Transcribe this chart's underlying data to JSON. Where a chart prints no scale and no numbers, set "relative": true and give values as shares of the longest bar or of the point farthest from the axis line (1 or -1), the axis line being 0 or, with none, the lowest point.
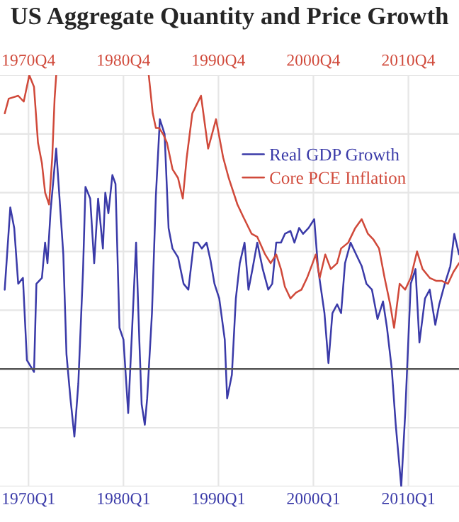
{
  "chart_data": {
    "type": "line",
    "title": "US Aggregate Quantity and Price Growth",
    "relative": true,
    "xlim": [
      "1967-01",
      "2015-05"
    ],
    "xticks": [
      {
        "value": "1970-01",
        "label": "1970Q1"
      },
      {
        "value": "1980-01",
        "label": "1980Q1"
      },
      {
        "value": "1990-01",
        "label": "1990Q1"
      },
      {
        "value": "2000-01",
        "label": "2000Q1"
      },
      {
        "value": "2010-01",
        "label": "2010Q1"
      }
    ],
    "x2lim": [
      "1967-10",
      "2016-02"
    ],
    "x2ticks": [
      {
        "value": "1970-10",
        "label": "1970Q4"
      },
      {
        "value": "1980-10",
        "label": "1980Q4"
      },
      {
        "value": "1990-10",
        "label": "1990Q4"
      },
      {
        "value": "2000-10",
        "label": "2000Q4"
      },
      {
        "value": "2010-10",
        "label": "2010Q4"
      }
    ],
    "grid": true,
    "legend": "top right",
    "ref_lines": [
      {
        "axis": "y",
        "value": 0,
        "color": "#555555"
      }
    ],
    "series": [
      {
        "name": "Real GDP Growth",
        "color": "#3a3aa8",
        "x": [
          "1967-07",
          "1968-02",
          "1968-07",
          "1968-12",
          "1969-06",
          "1969-11",
          "1970-08",
          "1970-11",
          "1971-06",
          "1971-10",
          "1972-01",
          "1972-05",
          "1972-12",
          "1973-09",
          "1974-01",
          "1974-06",
          "1974-11",
          "1975-04",
          "1975-10",
          "1976-01",
          "1976-07",
          "1976-12",
          "1977-05",
          "1977-11",
          "1978-02",
          "1978-06",
          "1978-11",
          "1979-03",
          "1979-08",
          "1980-01",
          "1980-07",
          "1980-12",
          "1981-05",
          "1981-09",
          "1981-12",
          "1982-04",
          "1982-07",
          "1983-01",
          "1983-06",
          "1983-11",
          "1984-05",
          "1984-10",
          "1985-03",
          "1985-10",
          "1986-05",
          "1986-11",
          "1987-06",
          "1987-11",
          "1988-04",
          "1988-10",
          "1989-03",
          "1989-08",
          "1990-02",
          "1990-09",
          "1990-12",
          "1991-06",
          "1991-11",
          "1992-04",
          "1992-10",
          "1993-03",
          "1993-08",
          "1994-02",
          "1994-09",
          "1995-04",
          "1995-09",
          "1996-02",
          "1996-08",
          "1997-01",
          "1997-08",
          "1998-01",
          "1998-07",
          "1998-12",
          "1999-07",
          "2000-02",
          "2000-07",
          "2001-03",
          "2001-08",
          "2002-01",
          "2002-07",
          "2002-12",
          "2003-05",
          "2003-12",
          "2004-07",
          "2005-02",
          "2005-08",
          "2006-03",
          "2006-10",
          "2007-05",
          "2007-10",
          "2008-04",
          "2008-09",
          "2009-04",
          "2009-09",
          "2010-04",
          "2010-10",
          "2011-03",
          "2011-10",
          "2012-04",
          "2012-11",
          "2013-04",
          "2013-11",
          "2014-06",
          "2014-11",
          "2015-05"
        ],
        "values": [
          0.27,
          0.55,
          0.48,
          0.29,
          0.31,
          0.03,
          -0.01,
          0.29,
          0.31,
          0.43,
          0.36,
          0.54,
          0.75,
          0.39,
          0.05,
          -0.1,
          -0.23,
          -0.05,
          0.34,
          0.62,
          0.58,
          0.36,
          0.58,
          0.41,
          0.6,
          0.53,
          0.66,
          0.63,
          0.14,
          0.1,
          -0.15,
          0.14,
          0.43,
          0.1,
          -0.12,
          -0.19,
          -0.1,
          0.19,
          0.59,
          0.85,
          0.8,
          0.48,
          0.41,
          0.38,
          0.29,
          0.27,
          0.43,
          0.43,
          0.41,
          0.43,
          0.37,
          0.29,
          0.24,
          0.1,
          -0.1,
          -0.02,
          0.24,
          0.36,
          0.43,
          0.27,
          0.34,
          0.43,
          0.34,
          0.27,
          0.29,
          0.43,
          0.43,
          0.46,
          0.47,
          0.43,
          0.48,
          0.46,
          0.48,
          0.51,
          0.34,
          0.19,
          0.02,
          0.19,
          0.22,
          0.19,
          0.36,
          0.43,
          0.39,
          0.35,
          0.29,
          0.27,
          0.17,
          0.23,
          0.14,
          0.0,
          -0.19,
          -0.4,
          -0.15,
          0.29,
          0.34,
          0.09,
          0.24,
          0.27,
          0.15,
          0.22,
          0.29,
          0.35,
          0.46,
          0.39
        ]
      },
      {
        "name": "Core PCE Inflation",
        "color": "#d0493a",
        "axis": "x2",
        "x": [
          "1968-04",
          "1968-09",
          "1969-09",
          "1970-04",
          "1970-11",
          "1971-05",
          "1971-10",
          "1972-03",
          "1972-07",
          "1972-12",
          "1973-04",
          "1973-07",
          "1973-09",
          "1977-10",
          "1983-06",
          "1983-11",
          "1984-03",
          "1984-07",
          "1984-12",
          "1985-05",
          "1985-12",
          "1986-07",
          "1987-01",
          "1987-06",
          "1988-01",
          "1988-12",
          "1989-09",
          "1990-07",
          "1991-04",
          "1991-11",
          "1992-10",
          "1993-05",
          "1994-04",
          "1994-11",
          "1995-09",
          "1996-04",
          "1996-11",
          "1997-05",
          "1997-10",
          "1998-05",
          "1998-12",
          "1999-07",
          "2000-02",
          "2000-09",
          "2001-01",
          "2001-06",
          "2002-01",
          "2002-08",
          "2003-04",
          "2003-09",
          "2004-06",
          "2005-03",
          "2005-11",
          "2006-07",
          "2007-02",
          "2007-09",
          "2008-04",
          "2008-11",
          "2009-04",
          "2009-11",
          "2010-06",
          "2011-01",
          "2011-09",
          "2012-04",
          "2013-01",
          "2013-09",
          "2014-04",
          "2014-12",
          "2015-07",
          "2016-02"
        ],
        "values": [
          0.87,
          0.92,
          0.93,
          0.91,
          1.0,
          0.96,
          0.77,
          0.7,
          0.6,
          0.56,
          0.72,
          0.92,
          1.0,
          null,
          1.0,
          0.87,
          0.82,
          0.82,
          0.8,
          0.77,
          0.68,
          0.65,
          0.58,
          0.72,
          0.87,
          0.93,
          0.75,
          0.85,
          0.72,
          0.65,
          0.56,
          0.52,
          0.46,
          0.45,
          0.39,
          0.36,
          0.39,
          0.34,
          0.28,
          0.24,
          0.26,
          0.27,
          0.31,
          0.36,
          0.39,
          0.31,
          0.39,
          0.34,
          0.36,
          0.41,
          0.43,
          0.48,
          0.51,
          0.46,
          0.44,
          0.41,
          0.31,
          0.22,
          0.14,
          0.29,
          0.27,
          0.31,
          0.4,
          0.34,
          0.31,
          0.3,
          0.3,
          0.29,
          0.33,
          0.36
        ]
      }
    ]
  }
}
